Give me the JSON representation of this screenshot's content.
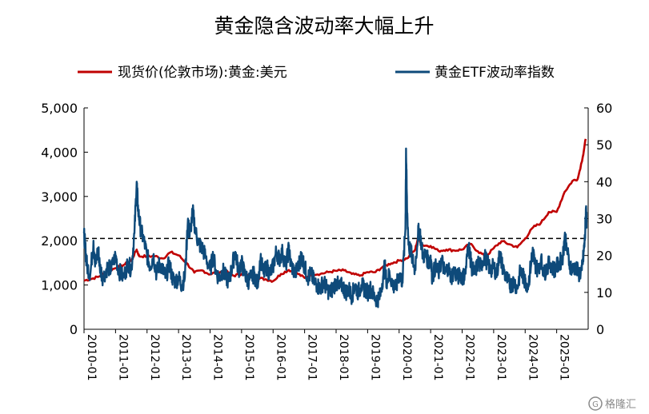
{
  "chart_data": {
    "type": "line",
    "title": "黄金隐含波动率大幅上升",
    "legend_position": "top",
    "grid": false,
    "y_left": {
      "range": [
        0,
        5000
      ],
      "ticks": [
        "0",
        "1,000",
        "2,000",
        "3,000",
        "4,000",
        "5,000"
      ]
    },
    "y_right": {
      "range": [
        0,
        60
      ],
      "ticks": [
        "0",
        "10",
        "20",
        "30",
        "40",
        "50",
        "60"
      ]
    },
    "x_ticks": [
      "2010-01",
      "2011-01",
      "2012-01",
      "2013-01",
      "2014-01",
      "2015-01",
      "2016-01",
      "2017-01",
      "2018-01",
      "2019-01",
      "2020-01",
      "2021-01",
      "2022-01",
      "2023-01",
      "2024-01",
      "2025-01"
    ],
    "reference_line": {
      "axis": "left",
      "value": 2050,
      "style": "dashed"
    },
    "series": [
      {
        "name": "现货价(伦敦市场):黄金:美元",
        "axis": "left",
        "color": "#C00000",
        "points": [
          [
            2010.0,
            1100
          ],
          [
            2010.25,
            1140
          ],
          [
            2010.5,
            1200
          ],
          [
            2010.75,
            1320
          ],
          [
            2011.0,
            1380
          ],
          [
            2011.25,
            1450
          ],
          [
            2011.5,
            1550
          ],
          [
            2011.67,
            1800
          ],
          [
            2011.75,
            1650
          ],
          [
            2012.0,
            1650
          ],
          [
            2012.25,
            1650
          ],
          [
            2012.5,
            1600
          ],
          [
            2012.75,
            1740
          ],
          [
            2013.0,
            1670
          ],
          [
            2013.25,
            1500
          ],
          [
            2013.5,
            1280
          ],
          [
            2013.75,
            1330
          ],
          [
            2014.0,
            1240
          ],
          [
            2014.25,
            1300
          ],
          [
            2014.5,
            1310
          ],
          [
            2014.75,
            1210
          ],
          [
            2015.0,
            1250
          ],
          [
            2015.25,
            1200
          ],
          [
            2015.5,
            1160
          ],
          [
            2015.75,
            1130
          ],
          [
            2016.0,
            1090
          ],
          [
            2016.25,
            1250
          ],
          [
            2016.5,
            1340
          ],
          [
            2016.75,
            1270
          ],
          [
            2017.0,
            1160
          ],
          [
            2017.25,
            1250
          ],
          [
            2017.5,
            1250
          ],
          [
            2017.75,
            1290
          ],
          [
            2018.0,
            1320
          ],
          [
            2018.25,
            1330
          ],
          [
            2018.5,
            1250
          ],
          [
            2018.75,
            1210
          ],
          [
            2019.0,
            1290
          ],
          [
            2019.25,
            1290
          ],
          [
            2019.5,
            1420
          ],
          [
            2019.75,
            1490
          ],
          [
            2020.0,
            1550
          ],
          [
            2020.25,
            1600
          ],
          [
            2020.5,
            1780
          ],
          [
            2020.6,
            2060
          ],
          [
            2020.75,
            1900
          ],
          [
            2021.0,
            1880
          ],
          [
            2021.25,
            1770
          ],
          [
            2021.5,
            1800
          ],
          [
            2021.75,
            1780
          ],
          [
            2022.0,
            1800
          ],
          [
            2022.25,
            1930
          ],
          [
            2022.5,
            1760
          ],
          [
            2022.75,
            1640
          ],
          [
            2023.0,
            1830
          ],
          [
            2023.25,
            1990
          ],
          [
            2023.5,
            1920
          ],
          [
            2023.75,
            1850
          ],
          [
            2024.0,
            2050
          ],
          [
            2024.25,
            2300
          ],
          [
            2024.5,
            2400
          ],
          [
            2024.75,
            2650
          ],
          [
            2025.0,
            2650
          ],
          [
            2025.25,
            3100
          ],
          [
            2025.5,
            3350
          ],
          [
            2025.67,
            3400
          ],
          [
            2025.83,
            3900
          ],
          [
            2025.92,
            4300
          ]
        ]
      },
      {
        "name": "黄金ETF波动率指数",
        "axis": "right",
        "color": "#0E4A7A",
        "points": [
          [
            2010.0,
            26
          ],
          [
            2010.05,
            21
          ],
          [
            2010.1,
            17
          ],
          [
            2010.2,
            15
          ],
          [
            2010.3,
            24
          ],
          [
            2010.35,
            17
          ],
          [
            2010.45,
            22
          ],
          [
            2010.5,
            17
          ],
          [
            2010.6,
            14
          ],
          [
            2010.75,
            17
          ],
          [
            2010.85,
            16
          ],
          [
            2011.0,
            20
          ],
          [
            2011.1,
            16
          ],
          [
            2011.25,
            14
          ],
          [
            2011.4,
            18
          ],
          [
            2011.5,
            16
          ],
          [
            2011.6,
            26
          ],
          [
            2011.67,
            40
          ],
          [
            2011.72,
            32
          ],
          [
            2011.8,
            27
          ],
          [
            2011.9,
            24
          ],
          [
            2012.0,
            20
          ],
          [
            2012.1,
            17
          ],
          [
            2012.2,
            20
          ],
          [
            2012.3,
            15
          ],
          [
            2012.4,
            18
          ],
          [
            2012.5,
            16
          ],
          [
            2012.6,
            14
          ],
          [
            2012.7,
            18
          ],
          [
            2012.8,
            14
          ],
          [
            2012.9,
            13
          ],
          [
            2013.0,
            14
          ],
          [
            2013.1,
            12
          ],
          [
            2013.2,
            14
          ],
          [
            2013.3,
            30
          ],
          [
            2013.35,
            25
          ],
          [
            2013.45,
            32
          ],
          [
            2013.55,
            26
          ],
          [
            2013.65,
            23
          ],
          [
            2013.75,
            22
          ],
          [
            2013.85,
            20
          ],
          [
            2014.0,
            16
          ],
          [
            2014.1,
            20
          ],
          [
            2014.2,
            15
          ],
          [
            2014.3,
            14
          ],
          [
            2014.4,
            16
          ],
          [
            2014.5,
            14
          ],
          [
            2014.6,
            13
          ],
          [
            2014.7,
            17
          ],
          [
            2014.8,
            21
          ],
          [
            2014.9,
            16
          ],
          [
            2015.0,
            18
          ],
          [
            2015.1,
            15
          ],
          [
            2015.2,
            13
          ],
          [
            2015.3,
            14
          ],
          [
            2015.4,
            15
          ],
          [
            2015.5,
            12
          ],
          [
            2015.6,
            19
          ],
          [
            2015.7,
            15
          ],
          [
            2015.8,
            17
          ],
          [
            2015.9,
            15
          ],
          [
            2016.0,
            17
          ],
          [
            2016.1,
            21
          ],
          [
            2016.2,
            19
          ],
          [
            2016.3,
            21
          ],
          [
            2016.4,
            17
          ],
          [
            2016.5,
            22
          ],
          [
            2016.55,
            18
          ],
          [
            2016.7,
            15
          ],
          [
            2016.8,
            17
          ],
          [
            2016.9,
            20
          ],
          [
            2017.0,
            17
          ],
          [
            2017.1,
            14
          ],
          [
            2017.2,
            15
          ],
          [
            2017.3,
            13
          ],
          [
            2017.4,
            12
          ],
          [
            2017.5,
            11
          ],
          [
            2017.6,
            13
          ],
          [
            2017.7,
            11
          ],
          [
            2017.8,
            10
          ],
          [
            2017.9,
            11
          ],
          [
            2018.0,
            13
          ],
          [
            2018.1,
            11
          ],
          [
            2018.2,
            12
          ],
          [
            2018.3,
            10
          ],
          [
            2018.4,
            11
          ],
          [
            2018.5,
            9
          ],
          [
            2018.6,
            12
          ],
          [
            2018.7,
            10
          ],
          [
            2018.8,
            12
          ],
          [
            2018.9,
            11
          ],
          [
            2019.0,
            10
          ],
          [
            2019.1,
            11
          ],
          [
            2019.2,
            9
          ],
          [
            2019.3,
            8
          ],
          [
            2019.4,
            9
          ],
          [
            2019.5,
            15
          ],
          [
            2019.55,
            17
          ],
          [
            2019.6,
            13
          ],
          [
            2019.7,
            15
          ],
          [
            2019.8,
            12
          ],
          [
            2019.9,
            11
          ],
          [
            2020.0,
            15
          ],
          [
            2020.1,
            13
          ],
          [
            2020.2,
            27
          ],
          [
            2020.22,
            49
          ],
          [
            2020.25,
            33
          ],
          [
            2020.3,
            23
          ],
          [
            2020.4,
            20
          ],
          [
            2020.5,
            16
          ],
          [
            2020.6,
            26
          ],
          [
            2020.65,
            27
          ],
          [
            2020.75,
            20
          ],
          [
            2020.85,
            20
          ],
          [
            2020.95,
            18
          ],
          [
            2021.0,
            20
          ],
          [
            2021.05,
            14
          ],
          [
            2021.15,
            17
          ],
          [
            2021.25,
            15
          ],
          [
            2021.35,
            19
          ],
          [
            2021.45,
            15
          ],
          [
            2021.55,
            17
          ],
          [
            2021.65,
            14
          ],
          [
            2021.75,
            16
          ],
          [
            2021.85,
            14
          ],
          [
            2021.95,
            15
          ],
          [
            2022.0,
            14
          ],
          [
            2022.1,
            15
          ],
          [
            2022.2,
            23
          ],
          [
            2022.25,
            20
          ],
          [
            2022.3,
            17
          ],
          [
            2022.4,
            15
          ],
          [
            2022.5,
            18
          ],
          [
            2022.6,
            17
          ],
          [
            2022.7,
            20
          ],
          [
            2022.8,
            18
          ],
          [
            2022.9,
            16
          ],
          [
            2023.0,
            17
          ],
          [
            2023.1,
            15
          ],
          [
            2023.2,
            21
          ],
          [
            2023.25,
            18
          ],
          [
            2023.35,
            15
          ],
          [
            2023.45,
            13
          ],
          [
            2023.55,
            12
          ],
          [
            2023.65,
            13
          ],
          [
            2023.75,
            11
          ],
          [
            2023.85,
            16
          ],
          [
            2023.95,
            14
          ],
          [
            2024.0,
            13
          ],
          [
            2024.1,
            12
          ],
          [
            2024.2,
            19
          ],
          [
            2024.25,
            21
          ],
          [
            2024.3,
            18
          ],
          [
            2024.4,
            16
          ],
          [
            2024.5,
            19
          ],
          [
            2024.6,
            15
          ],
          [
            2024.7,
            17
          ],
          [
            2024.8,
            18
          ],
          [
            2024.9,
            16
          ],
          [
            2025.0,
            17
          ],
          [
            2025.1,
            18
          ],
          [
            2025.2,
            20
          ],
          [
            2025.25,
            25
          ],
          [
            2025.3,
            23
          ],
          [
            2025.4,
            18
          ],
          [
            2025.5,
            16
          ],
          [
            2025.6,
            17
          ],
          [
            2025.7,
            15
          ],
          [
            2025.8,
            16
          ],
          [
            2025.85,
            20
          ],
          [
            2025.9,
            25
          ],
          [
            2025.93,
            33
          ],
          [
            2025.95,
            29
          ]
        ]
      }
    ]
  },
  "watermark": {
    "text": "格隆汇",
    "icon": "g-logo-icon"
  }
}
